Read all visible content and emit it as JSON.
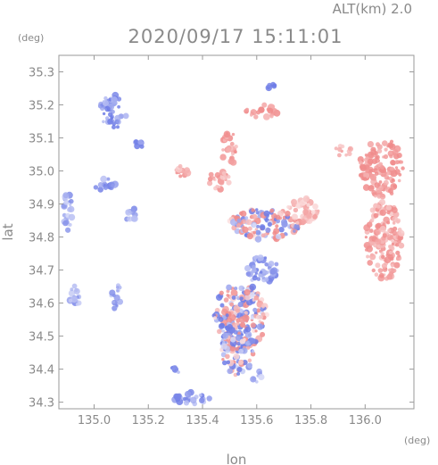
{
  "header": {
    "altitude_label": "ALT(km)  2.0",
    "timestamp": "2020/09/17 15:11:01",
    "y_unit": "(deg)",
    "x_unit": "(deg)"
  },
  "chart_data": {
    "type": "heatmap",
    "title": "2020/09/17 15:11:01",
    "xlabel": "lon",
    "ylabel": "lat",
    "xlim": [
      134.87,
      136.18
    ],
    "ylim": [
      34.28,
      35.35
    ],
    "x_ticks": [
      "135.0",
      "135.2",
      "135.4",
      "135.6",
      "135.8",
      "136.0"
    ],
    "y_ticks": [
      "34.3",
      "34.4",
      "34.5",
      "34.6",
      "34.7",
      "34.8",
      "34.9",
      "35.0",
      "35.1",
      "35.2",
      "35.3"
    ],
    "colors": {
      "positive": "#f08c8c",
      "negative": "#6e7ce6",
      "axis": "#9a9a9a"
    },
    "regions": [
      {
        "lon": 136.06,
        "lat": 35.01,
        "rx": 0.08,
        "ry": 0.09,
        "value": 0.45
      },
      {
        "lon": 136.07,
        "lat": 34.79,
        "rx": 0.07,
        "ry": 0.12,
        "value": 0.35
      },
      {
        "lon": 135.54,
        "lat": 34.56,
        "rx": 0.1,
        "ry": 0.1,
        "value": 0.0
      },
      {
        "lon": 135.53,
        "lat": 34.46,
        "rx": 0.06,
        "ry": 0.08,
        "value": -0.1
      },
      {
        "lon": 135.62,
        "lat": 34.7,
        "rx": 0.06,
        "ry": 0.04,
        "value": -0.3
      },
      {
        "lon": 135.63,
        "lat": 34.84,
        "rx": 0.13,
        "ry": 0.05,
        "value": 0.1
      },
      {
        "lon": 135.77,
        "lat": 34.88,
        "rx": 0.06,
        "ry": 0.04,
        "value": 0.2
      },
      {
        "lon": 135.62,
        "lat": 35.18,
        "rx": 0.06,
        "ry": 0.02,
        "value": 0.4
      },
      {
        "lon": 135.5,
        "lat": 35.07,
        "rx": 0.03,
        "ry": 0.05,
        "value": 0.35
      },
      {
        "lon": 135.46,
        "lat": 34.97,
        "rx": 0.04,
        "ry": 0.03,
        "value": 0.3
      },
      {
        "lon": 135.32,
        "lat": 35.0,
        "rx": 0.03,
        "ry": 0.02,
        "value": 0.3
      },
      {
        "lon": 134.9,
        "lat": 34.88,
        "rx": 0.02,
        "ry": 0.06,
        "value": -0.25
      },
      {
        "lon": 134.93,
        "lat": 34.62,
        "rx": 0.02,
        "ry": 0.04,
        "value": -0.25
      },
      {
        "lon": 135.08,
        "lat": 34.62,
        "rx": 0.02,
        "ry": 0.04,
        "value": -0.25
      },
      {
        "lon": 135.04,
        "lat": 34.96,
        "rx": 0.04,
        "ry": 0.02,
        "value": -0.25
      },
      {
        "lon": 135.14,
        "lat": 34.86,
        "rx": 0.02,
        "ry": 0.03,
        "value": -0.25
      },
      {
        "lon": 135.17,
        "lat": 35.08,
        "rx": 0.02,
        "ry": 0.02,
        "value": -0.4
      },
      {
        "lon": 135.36,
        "lat": 34.31,
        "rx": 0.07,
        "ry": 0.02,
        "value": -0.3
      },
      {
        "lon": 135.07,
        "lat": 35.18,
        "rx": 0.05,
        "ry": 0.05,
        "value": -0.35
      },
      {
        "lon": 135.65,
        "lat": 35.26,
        "rx": 0.02,
        "ry": 0.01,
        "value": -0.5
      },
      {
        "lon": 135.31,
        "lat": 34.4,
        "rx": 0.03,
        "ry": 0.01,
        "value": -0.35
      },
      {
        "lon": 135.6,
        "lat": 34.38,
        "rx": 0.02,
        "ry": 0.02,
        "value": -0.2
      },
      {
        "lon": 135.92,
        "lat": 35.06,
        "rx": 0.03,
        "ry": 0.02,
        "value": 0.25
      }
    ]
  }
}
